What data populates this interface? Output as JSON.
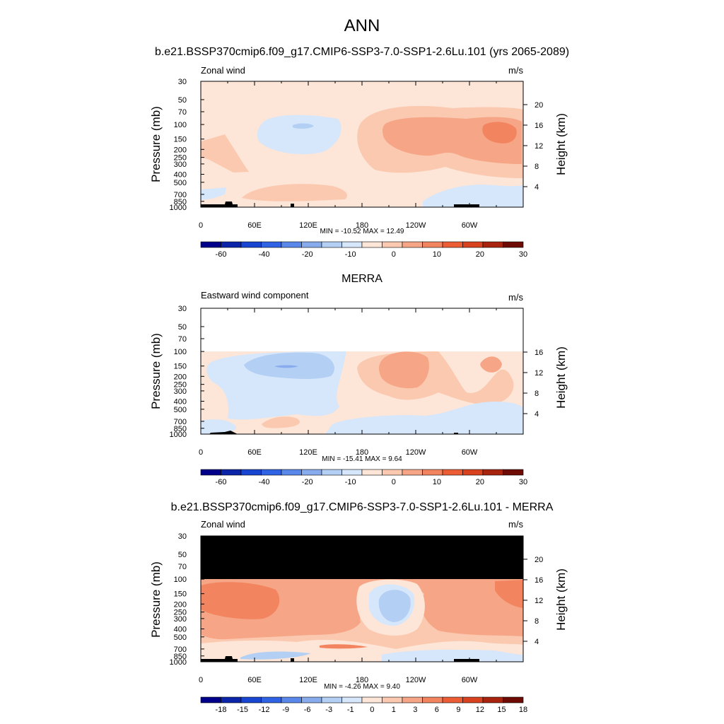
{
  "title": "ANN",
  "chart_data": [
    {
      "type": "heatmap",
      "title": "b.e21.BSSP370cmip6.f09_g17.CMIP6-SSP3-7.0-SSP1-2.6Lu.101 (yrs 2065-2089)",
      "left_label": "Zonal wind",
      "units": "m/s",
      "ylabel": "Pressure (mb)",
      "ylabel_right": "Height (km)",
      "pressure_ticks": [
        "30",
        "50",
        "70",
        "100",
        "150",
        "200",
        "250",
        "300",
        "400",
        "500",
        "700",
        "850",
        "1000"
      ],
      "height_ticks": [
        "20",
        "16",
        "12",
        "8",
        "4"
      ],
      "x_ticks": [
        "0",
        "60E",
        "120E",
        "180",
        "120W",
        "60W"
      ],
      "stats": "MIN = -10.52  MAX =  12.49",
      "min": -10.52,
      "max": 12.49,
      "colorbar_labels": [
        "-60",
        "-40",
        "-20",
        "-10",
        "0",
        "10",
        "20",
        "30"
      ]
    },
    {
      "type": "heatmap",
      "title": "MERRA",
      "left_label": "Eastward wind component",
      "units": "m/s",
      "ylabel": "Pressure (mb)",
      "ylabel_right": "Height (km)",
      "pressure_ticks": [
        "30",
        "50",
        "70",
        "100",
        "150",
        "200",
        "250",
        "300",
        "400",
        "500",
        "700",
        "850",
        "1000"
      ],
      "height_ticks": [
        "16",
        "12",
        "8",
        "4"
      ],
      "x_ticks": [
        "0",
        "60E",
        "120E",
        "180",
        "120W",
        "60W"
      ],
      "stats": "MIN = -15.41  MAX =   9.64",
      "min": -15.41,
      "max": 9.64,
      "colorbar_labels": [
        "-60",
        "-40",
        "-20",
        "-10",
        "0",
        "10",
        "20",
        "30"
      ]
    },
    {
      "type": "heatmap",
      "title": "b.e21.BSSP370cmip6.f09_g17.CMIP6-SSP3-7.0-SSP1-2.6Lu.101 - MERRA",
      "left_label": "Zonal wind",
      "units": "m/s",
      "ylabel": "Pressure (mb)",
      "ylabel_right": "Height (km)",
      "pressure_ticks": [
        "30",
        "50",
        "70",
        "100",
        "150",
        "200",
        "250",
        "300",
        "400",
        "500",
        "700",
        "850",
        "1000"
      ],
      "height_ticks": [
        "20",
        "16",
        "12",
        "8",
        "4"
      ],
      "x_ticks": [
        "0",
        "60E",
        "120E",
        "180",
        "120W",
        "60W"
      ],
      "stats": "MIN =  -4.26  MAX =   9.40",
      "min": -4.26,
      "max": 9.4,
      "colorbar_labels": [
        "-18",
        "-15",
        "-12",
        "-9",
        "-6",
        "-3",
        "-1",
        "0",
        "1",
        "3",
        "6",
        "9",
        "12",
        "15",
        "18"
      ]
    }
  ],
  "colorbar_colors": [
    "#00008b",
    "#0b24a8",
    "#1846d0",
    "#2f63e3",
    "#5a88ea",
    "#88abee",
    "#b4cff4",
    "#d6e6fb",
    "#fde6d7",
    "#fbc9b0",
    "#f6a686",
    "#f2845f",
    "#ec5d35",
    "#d8421f",
    "#a8240f",
    "#6e0b05"
  ],
  "mask_color": "#000000",
  "topography_color": "#000000"
}
